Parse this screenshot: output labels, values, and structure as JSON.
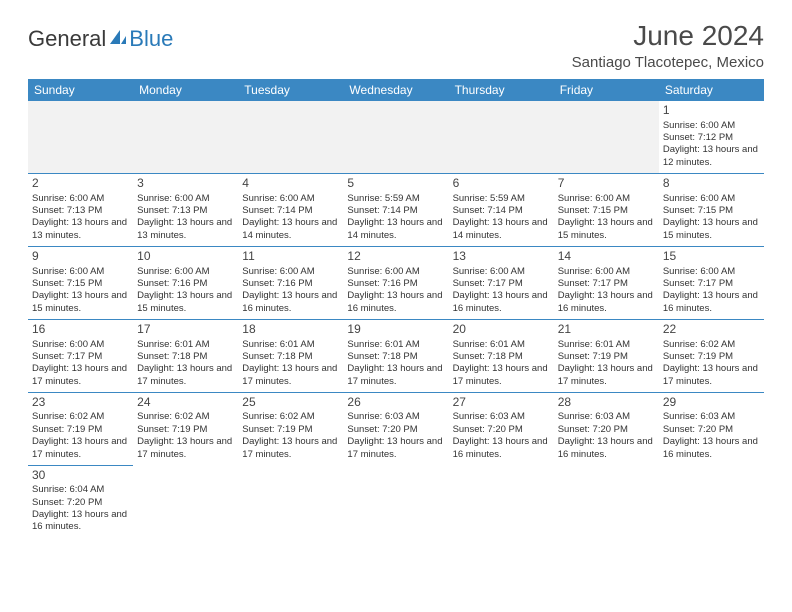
{
  "logo": {
    "text1": "General",
    "text2": "Blue"
  },
  "title": "June 2024",
  "location": "Santiago Tlacotepec, Mexico",
  "colors": {
    "header_bg": "#3b88c3",
    "header_text": "#ffffff",
    "border": "#3b88c3",
    "empty_row_bg": "#f2f2f2",
    "text": "#333333",
    "title_text": "#4a4a4a"
  },
  "dayHeaders": [
    "Sunday",
    "Monday",
    "Tuesday",
    "Wednesday",
    "Thursday",
    "Friday",
    "Saturday"
  ],
  "weeks": [
    [
      null,
      null,
      null,
      null,
      null,
      null,
      {
        "d": "1",
        "sr": "6:00 AM",
        "ss": "7:12 PM",
        "dl": "13 hours and 12 minutes."
      }
    ],
    [
      {
        "d": "2",
        "sr": "6:00 AM",
        "ss": "7:13 PM",
        "dl": "13 hours and 13 minutes."
      },
      {
        "d": "3",
        "sr": "6:00 AM",
        "ss": "7:13 PM",
        "dl": "13 hours and 13 minutes."
      },
      {
        "d": "4",
        "sr": "6:00 AM",
        "ss": "7:14 PM",
        "dl": "13 hours and 14 minutes."
      },
      {
        "d": "5",
        "sr": "5:59 AM",
        "ss": "7:14 PM",
        "dl": "13 hours and 14 minutes."
      },
      {
        "d": "6",
        "sr": "5:59 AM",
        "ss": "7:14 PM",
        "dl": "13 hours and 14 minutes."
      },
      {
        "d": "7",
        "sr": "6:00 AM",
        "ss": "7:15 PM",
        "dl": "13 hours and 15 minutes."
      },
      {
        "d": "8",
        "sr": "6:00 AM",
        "ss": "7:15 PM",
        "dl": "13 hours and 15 minutes."
      }
    ],
    [
      {
        "d": "9",
        "sr": "6:00 AM",
        "ss": "7:15 PM",
        "dl": "13 hours and 15 minutes."
      },
      {
        "d": "10",
        "sr": "6:00 AM",
        "ss": "7:16 PM",
        "dl": "13 hours and 15 minutes."
      },
      {
        "d": "11",
        "sr": "6:00 AM",
        "ss": "7:16 PM",
        "dl": "13 hours and 16 minutes."
      },
      {
        "d": "12",
        "sr": "6:00 AM",
        "ss": "7:16 PM",
        "dl": "13 hours and 16 minutes."
      },
      {
        "d": "13",
        "sr": "6:00 AM",
        "ss": "7:17 PM",
        "dl": "13 hours and 16 minutes."
      },
      {
        "d": "14",
        "sr": "6:00 AM",
        "ss": "7:17 PM",
        "dl": "13 hours and 16 minutes."
      },
      {
        "d": "15",
        "sr": "6:00 AM",
        "ss": "7:17 PM",
        "dl": "13 hours and 16 minutes."
      }
    ],
    [
      {
        "d": "16",
        "sr": "6:00 AM",
        "ss": "7:17 PM",
        "dl": "13 hours and 17 minutes."
      },
      {
        "d": "17",
        "sr": "6:01 AM",
        "ss": "7:18 PM",
        "dl": "13 hours and 17 minutes."
      },
      {
        "d": "18",
        "sr": "6:01 AM",
        "ss": "7:18 PM",
        "dl": "13 hours and 17 minutes."
      },
      {
        "d": "19",
        "sr": "6:01 AM",
        "ss": "7:18 PM",
        "dl": "13 hours and 17 minutes."
      },
      {
        "d": "20",
        "sr": "6:01 AM",
        "ss": "7:18 PM",
        "dl": "13 hours and 17 minutes."
      },
      {
        "d": "21",
        "sr": "6:01 AM",
        "ss": "7:19 PM",
        "dl": "13 hours and 17 minutes."
      },
      {
        "d": "22",
        "sr": "6:02 AM",
        "ss": "7:19 PM",
        "dl": "13 hours and 17 minutes."
      }
    ],
    [
      {
        "d": "23",
        "sr": "6:02 AM",
        "ss": "7:19 PM",
        "dl": "13 hours and 17 minutes."
      },
      {
        "d": "24",
        "sr": "6:02 AM",
        "ss": "7:19 PM",
        "dl": "13 hours and 17 minutes."
      },
      {
        "d": "25",
        "sr": "6:02 AM",
        "ss": "7:19 PM",
        "dl": "13 hours and 17 minutes."
      },
      {
        "d": "26",
        "sr": "6:03 AM",
        "ss": "7:20 PM",
        "dl": "13 hours and 17 minutes."
      },
      {
        "d": "27",
        "sr": "6:03 AM",
        "ss": "7:20 PM",
        "dl": "13 hours and 16 minutes."
      },
      {
        "d": "28",
        "sr": "6:03 AM",
        "ss": "7:20 PM",
        "dl": "13 hours and 16 minutes."
      },
      {
        "d": "29",
        "sr": "6:03 AM",
        "ss": "7:20 PM",
        "dl": "13 hours and 16 minutes."
      }
    ],
    [
      {
        "d": "30",
        "sr": "6:04 AM",
        "ss": "7:20 PM",
        "dl": "13 hours and 16 minutes."
      },
      null,
      null,
      null,
      null,
      null,
      null
    ]
  ],
  "labels": {
    "sunrise": "Sunrise:",
    "sunset": "Sunset:",
    "daylight": "Daylight:"
  }
}
